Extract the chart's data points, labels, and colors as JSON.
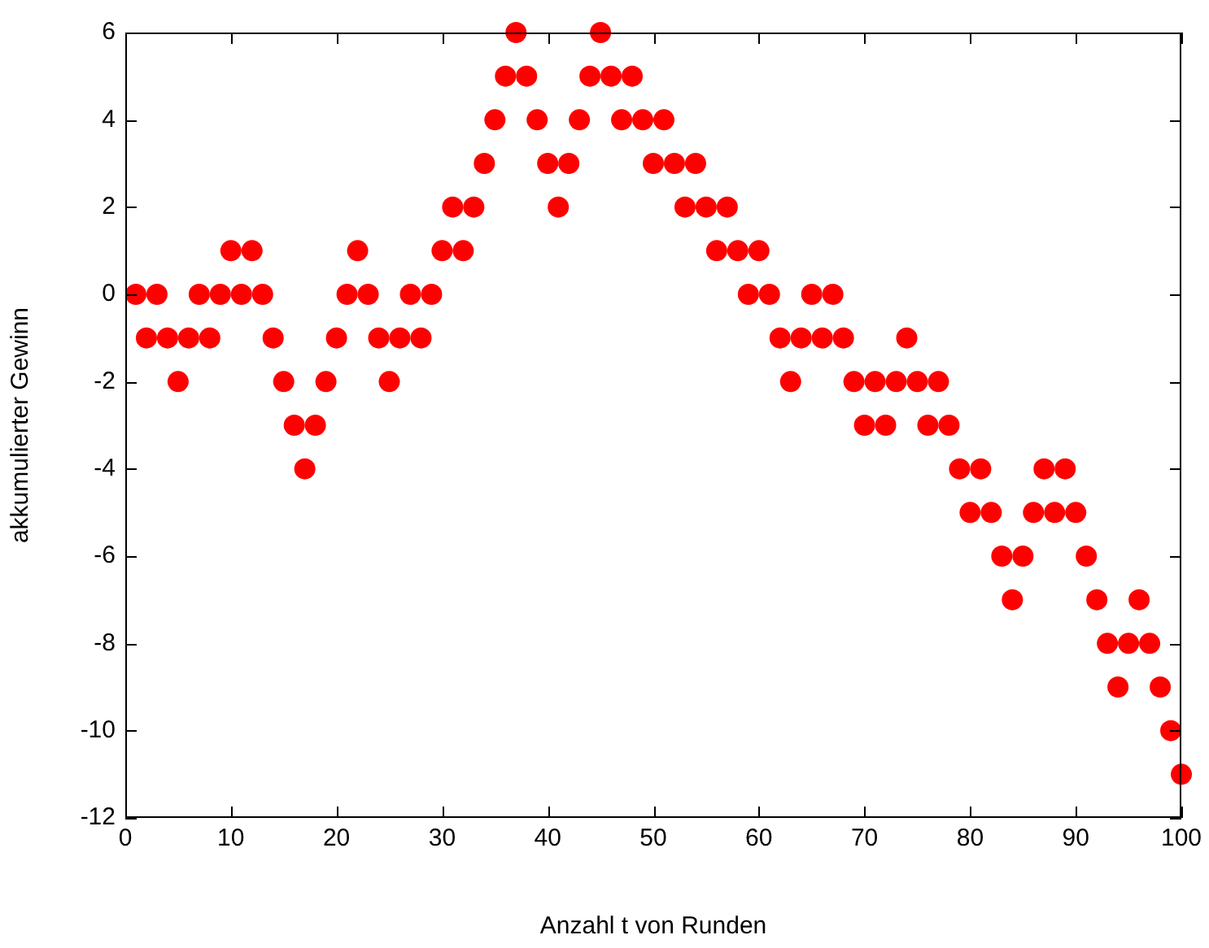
{
  "chart_data": {
    "type": "scatter",
    "xlabel": "Anzahl t von Runden",
    "ylabel": "akkumulierter Gewinn",
    "x": [
      1,
      2,
      3,
      4,
      5,
      6,
      7,
      8,
      9,
      10,
      11,
      12,
      13,
      14,
      15,
      16,
      17,
      18,
      19,
      20,
      21,
      22,
      23,
      24,
      25,
      26,
      27,
      28,
      29,
      30,
      31,
      32,
      33,
      34,
      35,
      36,
      37,
      38,
      39,
      40,
      41,
      42,
      43,
      44,
      45,
      46,
      47,
      48,
      49,
      50,
      51,
      52,
      53,
      54,
      55,
      56,
      57,
      58,
      59,
      60,
      61,
      62,
      63,
      64,
      65,
      66,
      67,
      68,
      69,
      70,
      71,
      72,
      73,
      74,
      75,
      76,
      77,
      78,
      79,
      80,
      81,
      82,
      83,
      84,
      85,
      86,
      87,
      88,
      89,
      90,
      91,
      92,
      93,
      94,
      95,
      96,
      97,
      98,
      99,
      100
    ],
    "series": [
      {
        "color": "#ff0000",
        "values": [
          0,
          -1,
          0,
          -1,
          -2,
          -1,
          0,
          -1,
          0,
          1,
          0,
          1,
          0,
          -1,
          -2,
          -3,
          -4,
          -3,
          -2,
          -1,
          0,
          1,
          0,
          -1,
          -2,
          -1,
          0,
          -1,
          0,
          1,
          2,
          1,
          2,
          3,
          4,
          5,
          6,
          5,
          4,
          3,
          2,
          3,
          4,
          5,
          6,
          5,
          4,
          5,
          4,
          3,
          4,
          3,
          2,
          3,
          2,
          1,
          2,
          1,
          0,
          1,
          0,
          -1,
          -2,
          -1,
          0,
          -1,
          0,
          -1,
          -2,
          -3,
          -2,
          -3,
          -2,
          -1,
          -2,
          -3,
          -2,
          -3,
          -4,
          -5,
          -4,
          -5,
          -6,
          -7,
          -6,
          -5,
          -4,
          -5,
          -4,
          -5,
          -6,
          -7,
          -8,
          -9,
          -8,
          -7,
          -8,
          -9,
          -10,
          -11
        ]
      }
    ],
    "xlim": [
      0,
      100
    ],
    "xticks": [
      0,
      10,
      20,
      30,
      40,
      50,
      60,
      70,
      80,
      90,
      100
    ],
    "ylim": [
      -12,
      6
    ],
    "yticks": [
      -12,
      -10,
      -8,
      -6,
      -4,
      -2,
      0,
      2,
      4,
      6
    ],
    "grid": false,
    "legend": false,
    "marker": "circle"
  }
}
